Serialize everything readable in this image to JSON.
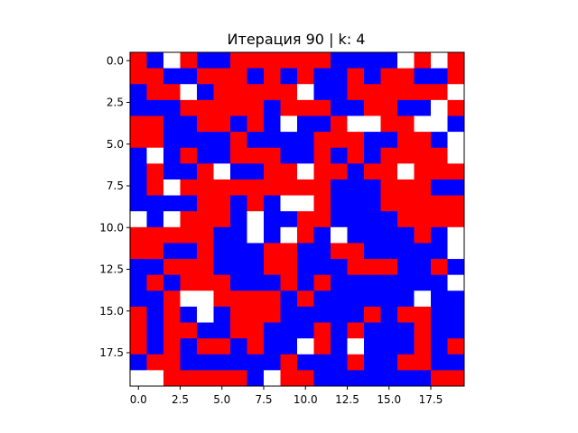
{
  "chart_data": {
    "type": "heatmap",
    "title": "Итерация 90 | k: 4",
    "xlabel": "",
    "ylabel": "",
    "colors": {
      "0": "#ffffff",
      "1": "#ff0000",
      "2": "#0000ff"
    },
    "xlim": [
      -0.5,
      19.5
    ],
    "ylim": [
      19.5,
      -0.5
    ],
    "xticks": [
      0,
      2.5,
      5,
      7.5,
      10,
      12.5,
      15,
      17.5
    ],
    "xtick_labels": [
      "0.0",
      "2.5",
      "5.0",
      "7.5",
      "10.0",
      "12.5",
      "15.0",
      "17.5"
    ],
    "yticks": [
      0,
      2.5,
      5,
      7.5,
      10,
      12.5,
      15,
      17.5
    ],
    "ytick_labels": [
      "0.0",
      "2.5",
      "5.0",
      "7.5",
      "10.0",
      "12.5",
      "15.0",
      "17.5"
    ],
    "grid": [
      [
        1,
        2,
        0,
        1,
        2,
        2,
        1,
        1,
        1,
        1,
        1,
        1,
        2,
        2,
        2,
        2,
        0,
        1,
        0,
        1
      ],
      [
        1,
        1,
        2,
        2,
        1,
        1,
        1,
        2,
        1,
        2,
        1,
        2,
        2,
        1,
        2,
        1,
        1,
        2,
        2,
        1
      ],
      [
        2,
        1,
        1,
        0,
        2,
        1,
        1,
        1,
        1,
        1,
        0,
        2,
        2,
        1,
        1,
        1,
        1,
        1,
        1,
        0
      ],
      [
        2,
        2,
        2,
        1,
        1,
        1,
        1,
        1,
        2,
        1,
        1,
        1,
        2,
        2,
        1,
        1,
        2,
        2,
        0,
        1
      ],
      [
        1,
        1,
        2,
        2,
        1,
        1,
        2,
        1,
        2,
        0,
        2,
        2,
        1,
        0,
        0,
        1,
        1,
        0,
        0,
        2
      ],
      [
        1,
        1,
        2,
        2,
        2,
        2,
        1,
        2,
        2,
        2,
        2,
        1,
        1,
        1,
        2,
        2,
        1,
        1,
        2,
        0
      ],
      [
        2,
        0,
        2,
        1,
        2,
        2,
        1,
        1,
        1,
        2,
        2,
        1,
        2,
        1,
        2,
        1,
        1,
        1,
        1,
        0
      ],
      [
        2,
        1,
        2,
        2,
        1,
        0,
        2,
        2,
        1,
        1,
        0,
        1,
        1,
        2,
        1,
        1,
        0,
        1,
        1,
        1
      ],
      [
        2,
        1,
        0,
        1,
        1,
        1,
        1,
        1,
        1,
        1,
        1,
        1,
        2,
        2,
        2,
        1,
        1,
        1,
        2,
        2
      ],
      [
        2,
        2,
        2,
        2,
        1,
        1,
        2,
        1,
        2,
        0,
        0,
        1,
        2,
        2,
        2,
        1,
        1,
        1,
        1,
        1
      ],
      [
        0,
        2,
        0,
        1,
        1,
        1,
        2,
        0,
        2,
        2,
        1,
        1,
        2,
        2,
        2,
        2,
        1,
        1,
        1,
        1
      ],
      [
        1,
        1,
        1,
        1,
        1,
        2,
        2,
        0,
        2,
        0,
        1,
        2,
        0,
        2,
        2,
        2,
        2,
        1,
        2,
        0
      ],
      [
        1,
        1,
        2,
        2,
        1,
        2,
        2,
        2,
        1,
        1,
        2,
        2,
        1,
        1,
        2,
        2,
        2,
        2,
        2,
        0
      ],
      [
        2,
        2,
        1,
        1,
        1,
        2,
        2,
        2,
        1,
        1,
        2,
        2,
        2,
        1,
        1,
        1,
        2,
        2,
        1,
        2
      ],
      [
        2,
        1,
        2,
        1,
        1,
        1,
        2,
        2,
        2,
        1,
        2,
        1,
        2,
        2,
        2,
        2,
        2,
        2,
        2,
        0
      ],
      [
        2,
        2,
        1,
        0,
        0,
        1,
        1,
        1,
        1,
        2,
        1,
        2,
        2,
        2,
        2,
        2,
        2,
        0,
        2,
        2
      ],
      [
        1,
        2,
        1,
        2,
        0,
        2,
        1,
        1,
        1,
        2,
        2,
        2,
        2,
        2,
        1,
        2,
        1,
        1,
        2,
        2
      ],
      [
        1,
        2,
        1,
        1,
        2,
        2,
        1,
        1,
        2,
        2,
        2,
        1,
        2,
        1,
        2,
        2,
        2,
        1,
        2,
        2
      ],
      [
        1,
        2,
        1,
        2,
        1,
        1,
        2,
        1,
        2,
        2,
        0,
        1,
        2,
        0,
        2,
        2,
        2,
        1,
        2,
        1
      ],
      [
        2,
        1,
        1,
        2,
        2,
        2,
        2,
        2,
        2,
        1,
        2,
        2,
        2,
        1,
        2,
        2,
        1,
        1,
        2,
        2
      ],
      [
        0,
        0,
        1,
        1,
        1,
        1,
        1,
        2,
        0,
        1,
        1,
        2,
        2,
        2,
        2,
        2,
        2,
        2,
        1,
        1
      ]
    ]
  }
}
